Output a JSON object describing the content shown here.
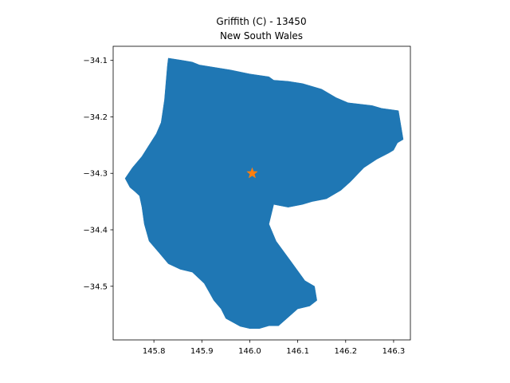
{
  "figure": {
    "title_line1": "Griffith (C) - 13450",
    "title_line2": "New South Wales"
  },
  "chart_data": {
    "type": "map",
    "title": "Griffith (C) - 13450\nNew South Wales",
    "xlim": [
      145.715,
      146.335
    ],
    "ylim": [
      -34.595,
      -34.075
    ],
    "x_ticks": [
      145.8,
      145.9,
      146.0,
      146.1,
      146.2,
      146.3
    ],
    "x_tick_labels": [
      "145.8",
      "145.9",
      "146.0",
      "146.1",
      "146.2",
      "146.3"
    ],
    "y_ticks": [
      -34.1,
      -34.2,
      -34.3,
      -34.4,
      -34.5
    ],
    "y_tick_labels": [
      "−34.1",
      "−34.2",
      "−34.3",
      "−34.4",
      "−34.5"
    ],
    "grid": false,
    "region": {
      "name": "Griffith (C) - 13450",
      "fill_color": "#1f77b4",
      "boundary": [
        [
          145.83,
          -34.096
        ],
        [
          145.86,
          -34.1
        ],
        [
          145.88,
          -34.103
        ],
        [
          145.895,
          -34.108
        ],
        [
          145.96,
          -34.117
        ],
        [
          146.0,
          -34.124
        ],
        [
          146.04,
          -34.129
        ],
        [
          146.05,
          -34.135
        ],
        [
          146.08,
          -34.137
        ],
        [
          146.11,
          -34.141
        ],
        [
          146.15,
          -34.151
        ],
        [
          146.18,
          -34.166
        ],
        [
          146.205,
          -34.175
        ],
        [
          146.255,
          -34.18
        ],
        [
          146.275,
          -34.185
        ],
        [
          146.31,
          -34.189
        ],
        [
          146.32,
          -34.24
        ],
        [
          146.308,
          -34.246
        ],
        [
          146.3,
          -34.259
        ],
        [
          146.29,
          -34.264
        ],
        [
          146.265,
          -34.275
        ],
        [
          146.238,
          -34.29
        ],
        [
          146.21,
          -34.315
        ],
        [
          146.19,
          -34.33
        ],
        [
          146.16,
          -34.345
        ],
        [
          146.13,
          -34.35
        ],
        [
          146.11,
          -34.355
        ],
        [
          146.08,
          -34.36
        ],
        [
          146.05,
          -34.355
        ],
        [
          146.04,
          -34.39
        ],
        [
          146.055,
          -34.42
        ],
        [
          146.085,
          -34.455
        ],
        [
          146.115,
          -34.49
        ],
        [
          146.135,
          -34.5
        ],
        [
          146.14,
          -34.525
        ],
        [
          146.125,
          -34.535
        ],
        [
          146.1,
          -34.54
        ],
        [
          146.08,
          -34.555
        ],
        [
          146.06,
          -34.57
        ],
        [
          146.04,
          -34.57
        ],
        [
          146.02,
          -34.575
        ],
        [
          146.0,
          -34.575
        ],
        [
          145.98,
          -34.571
        ],
        [
          145.95,
          -34.557
        ],
        [
          145.94,
          -34.54
        ],
        [
          145.925,
          -34.525
        ],
        [
          145.915,
          -34.51
        ],
        [
          145.905,
          -34.495
        ],
        [
          145.88,
          -34.475
        ],
        [
          145.855,
          -34.47
        ],
        [
          145.83,
          -34.46
        ],
        [
          145.81,
          -34.44
        ],
        [
          145.79,
          -34.42
        ],
        [
          145.78,
          -34.39
        ],
        [
          145.775,
          -34.36
        ],
        [
          145.77,
          -34.34
        ],
        [
          145.76,
          -34.332
        ],
        [
          145.75,
          -34.325
        ],
        [
          145.74,
          -34.309
        ],
        [
          145.755,
          -34.29
        ],
        [
          145.775,
          -34.27
        ],
        [
          145.79,
          -34.25
        ],
        [
          145.805,
          -34.23
        ],
        [
          145.815,
          -34.21
        ],
        [
          145.822,
          -34.17
        ],
        [
          145.825,
          -34.14
        ],
        [
          145.828,
          -34.11
        ]
      ]
    },
    "markers": [
      {
        "name": "centroid",
        "x": 146.005,
        "y": -34.3,
        "symbol": "star",
        "color": "#ff7f0e"
      }
    ]
  }
}
